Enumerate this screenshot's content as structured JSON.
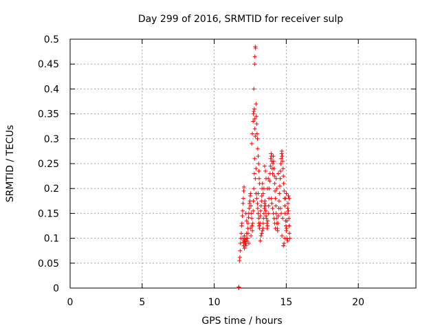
{
  "chart_data": {
    "type": "scatter",
    "title": "Day 299 of 2016, SRMTID for receiver sulp",
    "xlabel": "GPS time / hours",
    "ylabel": "SRMTID / TECUs",
    "xlim": [
      0,
      24
    ],
    "ylim": [
      0,
      0.5
    ],
    "xticks": [
      0,
      5,
      10,
      15,
      20
    ],
    "xtick_labels": [
      "0",
      "5",
      "10",
      "15",
      "20"
    ],
    "yticks": [
      0,
      0.05,
      0.1,
      0.15,
      0.2,
      0.25,
      0.3,
      0.35,
      0.4,
      0.45,
      0.5
    ],
    "ytick_labels": [
      "0",
      "0.05",
      "0.1",
      "0.15",
      "0.2",
      "0.25",
      "0.3",
      "0.35",
      "0.4",
      "0.45",
      "0.5"
    ],
    "grid": true,
    "marker": "+",
    "color": "#ff0000",
    "series": [
      {
        "name": "SRMTID",
        "points": [
          [
            11.7,
            0.0
          ],
          [
            11.7,
            0.002
          ],
          [
            11.72,
            0.001
          ],
          [
            11.75,
            0.055
          ],
          [
            11.78,
            0.062
          ],
          [
            11.8,
            0.075
          ],
          [
            11.82,
            0.09
          ],
          [
            11.85,
            0.1
          ],
          [
            11.88,
            0.11
          ],
          [
            11.9,
            0.125
          ],
          [
            11.92,
            0.13
          ],
          [
            11.95,
            0.145
          ],
          [
            11.97,
            0.155
          ],
          [
            12.0,
            0.17
          ],
          [
            12.02,
            0.18
          ],
          [
            12.05,
            0.195
          ],
          [
            12.07,
            0.203
          ],
          [
            12.0,
            0.1
          ],
          [
            12.02,
            0.092
          ],
          [
            12.05,
            0.085
          ],
          [
            12.08,
            0.095
          ],
          [
            12.1,
            0.105
          ],
          [
            12.12,
            0.098
          ],
          [
            12.15,
            0.088
          ],
          [
            12.18,
            0.093
          ],
          [
            12.2,
            0.085
          ],
          [
            12.22,
            0.1
          ],
          [
            12.25,
            0.11
          ],
          [
            12.1,
            0.08
          ],
          [
            12.15,
            0.09
          ],
          [
            12.28,
            0.095
          ],
          [
            12.3,
            0.1
          ],
          [
            12.33,
            0.12
          ],
          [
            12.35,
            0.13
          ],
          [
            12.38,
            0.142
          ],
          [
            12.4,
            0.15
          ],
          [
            12.42,
            0.16
          ],
          [
            12.45,
            0.17
          ],
          [
            12.48,
            0.175
          ],
          [
            12.5,
            0.185
          ],
          [
            12.52,
            0.19
          ],
          [
            12.55,
            0.165
          ],
          [
            12.58,
            0.15
          ],
          [
            12.6,
            0.14
          ],
          [
            12.62,
            0.125
          ],
          [
            12.65,
            0.115
          ],
          [
            12.68,
            0.13
          ],
          [
            12.7,
            0.155
          ],
          [
            12.72,
            0.175
          ],
          [
            12.75,
            0.2
          ],
          [
            12.78,
            0.23
          ],
          [
            12.8,
            0.26
          ],
          [
            12.6,
            0.29
          ],
          [
            12.65,
            0.31
          ],
          [
            12.7,
            0.335
          ],
          [
            12.72,
            0.35
          ],
          [
            12.75,
            0.355
          ],
          [
            12.78,
            0.36
          ],
          [
            12.8,
            0.34
          ],
          [
            12.82,
            0.32
          ],
          [
            12.85,
            0.305
          ],
          [
            12.75,
            0.4
          ],
          [
            12.8,
            0.45
          ],
          [
            12.82,
            0.465
          ],
          [
            12.85,
            0.485
          ],
          [
            12.87,
            0.482
          ],
          [
            12.9,
            0.37
          ],
          [
            12.92,
            0.345
          ],
          [
            12.95,
            0.33
          ],
          [
            12.97,
            0.31
          ],
          [
            13.0,
            0.3
          ],
          [
            13.02,
            0.28
          ],
          [
            13.05,
            0.265
          ],
          [
            13.08,
            0.25
          ],
          [
            13.1,
            0.235
          ],
          [
            13.12,
            0.22
          ],
          [
            13.15,
            0.21
          ],
          [
            12.9,
            0.19
          ],
          [
            12.95,
            0.18
          ],
          [
            13.0,
            0.17
          ],
          [
            13.02,
            0.16
          ],
          [
            13.05,
            0.15
          ],
          [
            13.08,
            0.14
          ],
          [
            13.1,
            0.13
          ],
          [
            13.12,
            0.125
          ],
          [
            13.15,
            0.12
          ],
          [
            13.18,
            0.13
          ],
          [
            13.2,
            0.145
          ],
          [
            13.22,
            0.155
          ],
          [
            13.25,
            0.165
          ],
          [
            13.28,
            0.175
          ],
          [
            13.3,
            0.185
          ],
          [
            13.32,
            0.2
          ],
          [
            13.35,
            0.21
          ],
          [
            13.3,
            0.11
          ],
          [
            13.35,
            0.115
          ],
          [
            13.38,
            0.12
          ],
          [
            13.4,
            0.13
          ],
          [
            13.42,
            0.14
          ],
          [
            13.45,
            0.15
          ],
          [
            13.48,
            0.16
          ],
          [
            13.5,
            0.17
          ],
          [
            13.52,
            0.175
          ],
          [
            13.55,
            0.165
          ],
          [
            13.58,
            0.155
          ],
          [
            13.6,
            0.145
          ],
          [
            13.62,
            0.14
          ],
          [
            13.65,
            0.13
          ],
          [
            13.68,
            0.12
          ],
          [
            13.7,
            0.125
          ],
          [
            13.72,
            0.135
          ],
          [
            13.75,
            0.15
          ],
          [
            13.78,
            0.165
          ],
          [
            13.8,
            0.18
          ],
          [
            13.82,
            0.2
          ],
          [
            13.85,
            0.215
          ],
          [
            13.88,
            0.23
          ],
          [
            13.9,
            0.245
          ],
          [
            13.92,
            0.26
          ],
          [
            13.95,
            0.27
          ],
          [
            13.98,
            0.265
          ],
          [
            14.0,
            0.255
          ],
          [
            14.02,
            0.24
          ],
          [
            14.05,
            0.23
          ],
          [
            14.08,
            0.25
          ],
          [
            14.1,
            0.265
          ],
          [
            14.12,
            0.255
          ],
          [
            14.15,
            0.24
          ],
          [
            14.18,
            0.225
          ],
          [
            14.2,
            0.21
          ],
          [
            14.22,
            0.195
          ],
          [
            14.25,
            0.18
          ],
          [
            14.28,
            0.165
          ],
          [
            14.3,
            0.15
          ],
          [
            14.32,
            0.14
          ],
          [
            14.35,
            0.13
          ],
          [
            14.38,
            0.12
          ],
          [
            14.4,
            0.115
          ],
          [
            14.42,
            0.13
          ],
          [
            14.45,
            0.145
          ],
          [
            14.48,
            0.16
          ],
          [
            14.5,
            0.175
          ],
          [
            14.52,
            0.19
          ],
          [
            14.55,
            0.205
          ],
          [
            14.58,
            0.22
          ],
          [
            14.6,
            0.235
          ],
          [
            14.62,
            0.25
          ],
          [
            14.65,
            0.26
          ],
          [
            14.68,
            0.27
          ],
          [
            14.7,
            0.275
          ],
          [
            14.72,
            0.265
          ],
          [
            14.75,
            0.255
          ],
          [
            14.78,
            0.24
          ],
          [
            14.8,
            0.225
          ],
          [
            14.82,
            0.21
          ],
          [
            14.85,
            0.195
          ],
          [
            14.88,
            0.18
          ],
          [
            14.9,
            0.165
          ],
          [
            14.92,
            0.15
          ],
          [
            14.95,
            0.135
          ],
          [
            14.98,
            0.125
          ],
          [
            15.0,
            0.115
          ],
          [
            15.02,
            0.12
          ],
          [
            15.05,
            0.135
          ],
          [
            15.08,
            0.15
          ],
          [
            15.1,
            0.16
          ],
          [
            15.12,
            0.17
          ],
          [
            15.15,
            0.155
          ],
          [
            15.18,
            0.14
          ],
          [
            15.2,
            0.125
          ],
          [
            15.22,
            0.11
          ],
          [
            15.25,
            0.1
          ],
          [
            15.2,
            0.18
          ],
          [
            15.15,
            0.185
          ],
          [
            14.85,
            0.09
          ],
          [
            14.8,
            0.085
          ],
          [
            14.9,
            0.1
          ],
          [
            14.7,
            0.105
          ],
          [
            13.5,
            0.245
          ],
          [
            13.55,
            0.235
          ],
          [
            13.6,
            0.22
          ],
          [
            13.95,
            0.18
          ],
          [
            14.0,
            0.17
          ],
          [
            14.05,
            0.16
          ],
          [
            14.1,
            0.15
          ],
          [
            14.15,
            0.14
          ],
          [
            14.2,
            0.13
          ],
          [
            14.25,
            0.12
          ],
          [
            13.2,
            0.095
          ],
          [
            13.25,
            0.105
          ],
          [
            12.55,
            0.105
          ],
          [
            12.5,
            0.12
          ],
          [
            12.4,
            0.09
          ],
          [
            12.35,
            0.11
          ],
          [
            12.25,
            0.135
          ],
          [
            12.2,
            0.15
          ],
          [
            12.85,
            0.22
          ],
          [
            12.9,
            0.24
          ],
          [
            13.05,
            0.19
          ],
          [
            13.4,
            0.19
          ],
          [
            13.45,
            0.2
          ],
          [
            13.7,
            0.2
          ],
          [
            13.75,
            0.22
          ],
          [
            14.3,
            0.22
          ],
          [
            14.35,
            0.2
          ],
          [
            14.45,
            0.23
          ],
          [
            14.6,
            0.16
          ],
          [
            14.65,
            0.15
          ],
          [
            14.75,
            0.14
          ],
          [
            15.05,
            0.1
          ],
          [
            15.1,
            0.095
          ],
          [
            14.95,
            0.18
          ],
          [
            15.0,
            0.19
          ]
        ]
      }
    ]
  }
}
